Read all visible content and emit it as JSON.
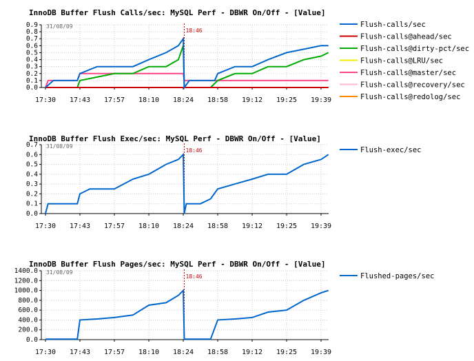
{
  "chart_data": [
    {
      "type": "line",
      "title": "InnoDB Buffer Flush Calls/sec: MySQL Perf - DBWR On/Off - [Value]",
      "date_label": "31/08/09",
      "marker_label": "18:46",
      "x_ticks": [
        "17:30",
        "17:43",
        "17:57",
        "18:10",
        "18:24",
        "18:58",
        "19:12",
        "19:25",
        "19:39"
      ],
      "ylim": [
        0,
        0.9
      ],
      "y_ticks": [
        "0.0",
        "0.1",
        "0.2",
        "0.3",
        "0.4",
        "0.5",
        "0.6",
        "0.7",
        "0.8",
        "0.9"
      ],
      "series": [
        {
          "name": "Flush-calls/sec",
          "color": "#0066cc",
          "x": [
            "17:30",
            "17:33",
            "17:36",
            "17:40",
            "17:42",
            "17:43",
            "17:50",
            "17:57",
            "18:04",
            "18:10",
            "18:17",
            "18:22",
            "18:24",
            "18:25",
            "18:30",
            "18:40",
            "18:51",
            "18:55",
            "18:58",
            "19:05",
            "19:12",
            "19:18",
            "19:25",
            "19:32",
            "19:39",
            "19:42"
          ],
          "values": [
            0.0,
            0.1,
            0.1,
            0.1,
            0.1,
            0.2,
            0.3,
            0.3,
            0.3,
            0.4,
            0.5,
            0.6,
            0.7,
            0.0,
            0.1,
            0.1,
            0.1,
            0.1,
            0.2,
            0.3,
            0.3,
            0.4,
            0.5,
            0.55,
            0.6,
            0.6
          ]
        },
        {
          "name": "Flush-calls@ahead/sec",
          "color": "#cc0000",
          "x": [
            "17:30",
            "19:42"
          ],
          "values": [
            0.0,
            0.0
          ]
        },
        {
          "name": "Flush-calls@dirty-pct/sec",
          "color": "#00aa00",
          "x": [
            "17:30",
            "17:42",
            "17:43",
            "17:57",
            "18:04",
            "18:10",
            "18:17",
            "18:22",
            "18:24",
            "18:25",
            "18:51",
            "18:58",
            "19:05",
            "19:12",
            "19:18",
            "19:25",
            "19:32",
            "19:39",
            "19:42"
          ],
          "values": [
            0.0,
            0.0,
            0.1,
            0.2,
            0.2,
            0.3,
            0.3,
            0.4,
            0.6,
            0.0,
            0.0,
            0.1,
            0.2,
            0.2,
            0.3,
            0.3,
            0.4,
            0.45,
            0.5
          ]
        },
        {
          "name": "Flush-calls@LRU/sec",
          "color": "#eeee00",
          "x": [
            "17:30",
            "19:42"
          ],
          "values": [
            0.0,
            0.0
          ]
        },
        {
          "name": "Flush-calls@master/sec",
          "color": "#ff4488",
          "x": [
            "17:30",
            "17:31",
            "17:42",
            "17:43",
            "18:24",
            "18:25",
            "18:57",
            "18:58",
            "19:42"
          ],
          "values": [
            0.0,
            0.1,
            0.1,
            0.2,
            0.2,
            0.1,
            0.1,
            0.1,
            0.1
          ]
        },
        {
          "name": "Flush-calls@recovery/sec",
          "color": "#ffbbcc",
          "x": [
            "17:30",
            "19:42"
          ],
          "values": [
            0.0,
            0.0
          ]
        },
        {
          "name": "Flush-calls@redolog/sec",
          "color": "#ff8800",
          "x": [
            "17:30",
            "19:42"
          ],
          "values": [
            0.0,
            0.0
          ]
        }
      ]
    },
    {
      "type": "line",
      "title": "InnoDB Buffer Flush Exec/sec: MySQL Perf - DBWR On/Off - [Value]",
      "date_label": "31/08/09",
      "marker_label": "18:46",
      "x_ticks": [
        "17:30",
        "17:43",
        "17:57",
        "18:10",
        "18:24",
        "18:58",
        "19:12",
        "19:25",
        "19:39"
      ],
      "ylim": [
        0,
        0.7
      ],
      "y_ticks": [
        "0.0",
        "0.1",
        "0.2",
        "0.3",
        "0.4",
        "0.5",
        "0.6",
        "0.7"
      ],
      "series": [
        {
          "name": "Flush-exec/sec",
          "color": "#0066cc",
          "x": [
            "17:30",
            "17:31",
            "17:38",
            "17:42",
            "17:43",
            "17:47",
            "17:57",
            "18:04",
            "18:10",
            "18:17",
            "18:22",
            "18:24",
            "18:25",
            "18:27",
            "18:31",
            "18:41",
            "18:51",
            "18:58",
            "19:05",
            "19:12",
            "19:18",
            "19:25",
            "19:32",
            "19:39",
            "19:42"
          ],
          "values": [
            0.0,
            0.1,
            0.1,
            0.1,
            0.2,
            0.25,
            0.25,
            0.35,
            0.4,
            0.5,
            0.55,
            0.6,
            0.0,
            0.1,
            0.1,
            0.1,
            0.15,
            0.25,
            0.3,
            0.35,
            0.4,
            0.4,
            0.5,
            0.55,
            0.6
          ]
        }
      ]
    },
    {
      "type": "line",
      "title": "InnoDB Buffer Flush Pages/sec: MySQL Perf - DBWR On/Off - [Value]",
      "date_label": "31/08/09",
      "marker_label": "18:46",
      "x_ticks": [
        "17:30",
        "17:43",
        "17:57",
        "18:10",
        "18:24",
        "18:58",
        "19:12",
        "19:25",
        "19:39"
      ],
      "ylim": [
        0,
        1400
      ],
      "y_ticks": [
        "0.0",
        "200.0",
        "400.0",
        "600.0",
        "800.0",
        "1000.0",
        "1200.0",
        "1400.0"
      ],
      "series": [
        {
          "name": "Flushed-pages/sec",
          "color": "#0066cc",
          "x": [
            "17:30",
            "17:42",
            "17:43",
            "17:50",
            "17:57",
            "18:04",
            "18:10",
            "18:17",
            "18:22",
            "18:24",
            "18:25",
            "18:40",
            "18:51",
            "18:58",
            "19:05",
            "19:12",
            "19:18",
            "19:25",
            "19:32",
            "19:39",
            "19:42"
          ],
          "values": [
            10,
            10,
            400,
            420,
            450,
            500,
            700,
            750,
            900,
            1000,
            10,
            10,
            10,
            400,
            420,
            450,
            560,
            600,
            800,
            950,
            1000
          ]
        }
      ]
    }
  ]
}
